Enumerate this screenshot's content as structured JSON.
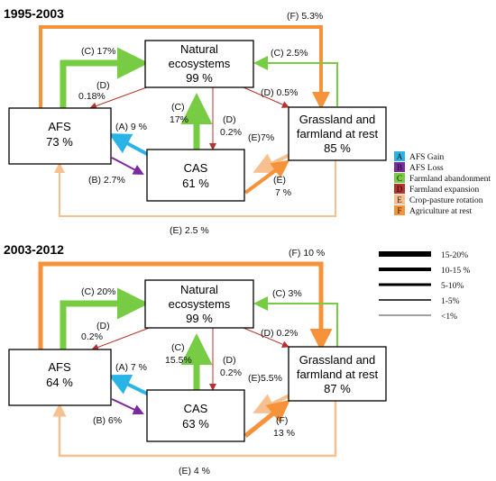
{
  "colors": {
    "A": "#2ab3e6",
    "B": "#7a2a9e",
    "C": "#77cc44",
    "D": "#b5332e",
    "E": "#f7c08e",
    "F": "#f5923a"
  },
  "periods": [
    {
      "title": "1995-2003",
      "boxes": {
        "afs": {
          "name": "AFS",
          "value": "73 %"
        },
        "natural": {
          "line1": "Natural",
          "line2": "ecosystems",
          "value": "99 %"
        },
        "cas": {
          "name": "CAS",
          "value": "61 %"
        },
        "grass": {
          "line1": "Grassland and",
          "line2": "farmland at rest",
          "value": "85 %"
        }
      },
      "flows": {
        "f_top": "(F) 5.3%",
        "c_afs_nat": "(C) 17%",
        "c_grass_nat": "(C) 2.5%",
        "d_nat_afs_1": "(D)",
        "d_nat_afs_2": "0.18%",
        "d_nat_grass": "(D) 0.5%",
        "c_cas_nat_1": "(C)",
        "c_cas_nat_2": "17%",
        "d_nat_cas_1": "(D)",
        "d_nat_cas_2": "0.2%",
        "a_cas_afs": "(A) 9 %",
        "e_grass_cas": "(E)7%",
        "b_afs_cas": "(B) 2.7%",
        "e_cas_grass_1": "(E)",
        "e_cas_grass_2": "7 %",
        "e_bottom": "(E) 2.5 %"
      }
    },
    {
      "title": "2003-2012",
      "boxes": {
        "afs": {
          "name": "AFS",
          "value": "64 %"
        },
        "natural": {
          "line1": "Natural",
          "line2": "ecosystems",
          "value": "99 %"
        },
        "cas": {
          "name": "CAS",
          "value": "63 %"
        },
        "grass": {
          "line1": "Grassland and",
          "line2": "farmland at rest",
          "value": "87 %"
        }
      },
      "flows": {
        "f_top": "(F) 10 %",
        "c_afs_nat": "(C) 20%",
        "c_grass_nat": "(C) 3%",
        "d_nat_afs_1": "(D)",
        "d_nat_afs_2": "0.2%",
        "d_nat_grass": "(D) 0.2%",
        "c_cas_nat_1": "(C)",
        "c_cas_nat_2": "15.5%",
        "d_nat_cas_1": "(D)",
        "d_nat_cas_2": "0.2%",
        "a_cas_afs": "(A) 7 %",
        "e_grass_cas": "(E)5.5%",
        "b_afs_cas": "(B) 6%",
        "e_cas_grass_1": "(F)",
        "e_cas_grass_2": "13 %",
        "e_bottom": "(E) 4 %"
      }
    }
  ],
  "legend": {
    "categories": [
      {
        "key": "A",
        "label": "AFS Gain",
        "color": "#2ab3e6"
      },
      {
        "key": "B",
        "label": "AFS Loss",
        "color": "#7a2a9e"
      },
      {
        "key": "C",
        "label": "Farmland abandonment",
        "color": "#77cc44"
      },
      {
        "key": "D",
        "label": "Farmland expansion",
        "color": "#b5332e"
      },
      {
        "key": "E",
        "label": "Crop-pasture rotation",
        "color": "#f7c08e"
      },
      {
        "key": "F",
        "label": "Agriculture at rest",
        "color": "#f5923a"
      }
    ],
    "widths": [
      {
        "label": "15-20%"
      },
      {
        "label": "10-15 %"
      },
      {
        "label": "5-10%"
      },
      {
        "label": "1-5%"
      },
      {
        "label": "<1%"
      }
    ]
  }
}
